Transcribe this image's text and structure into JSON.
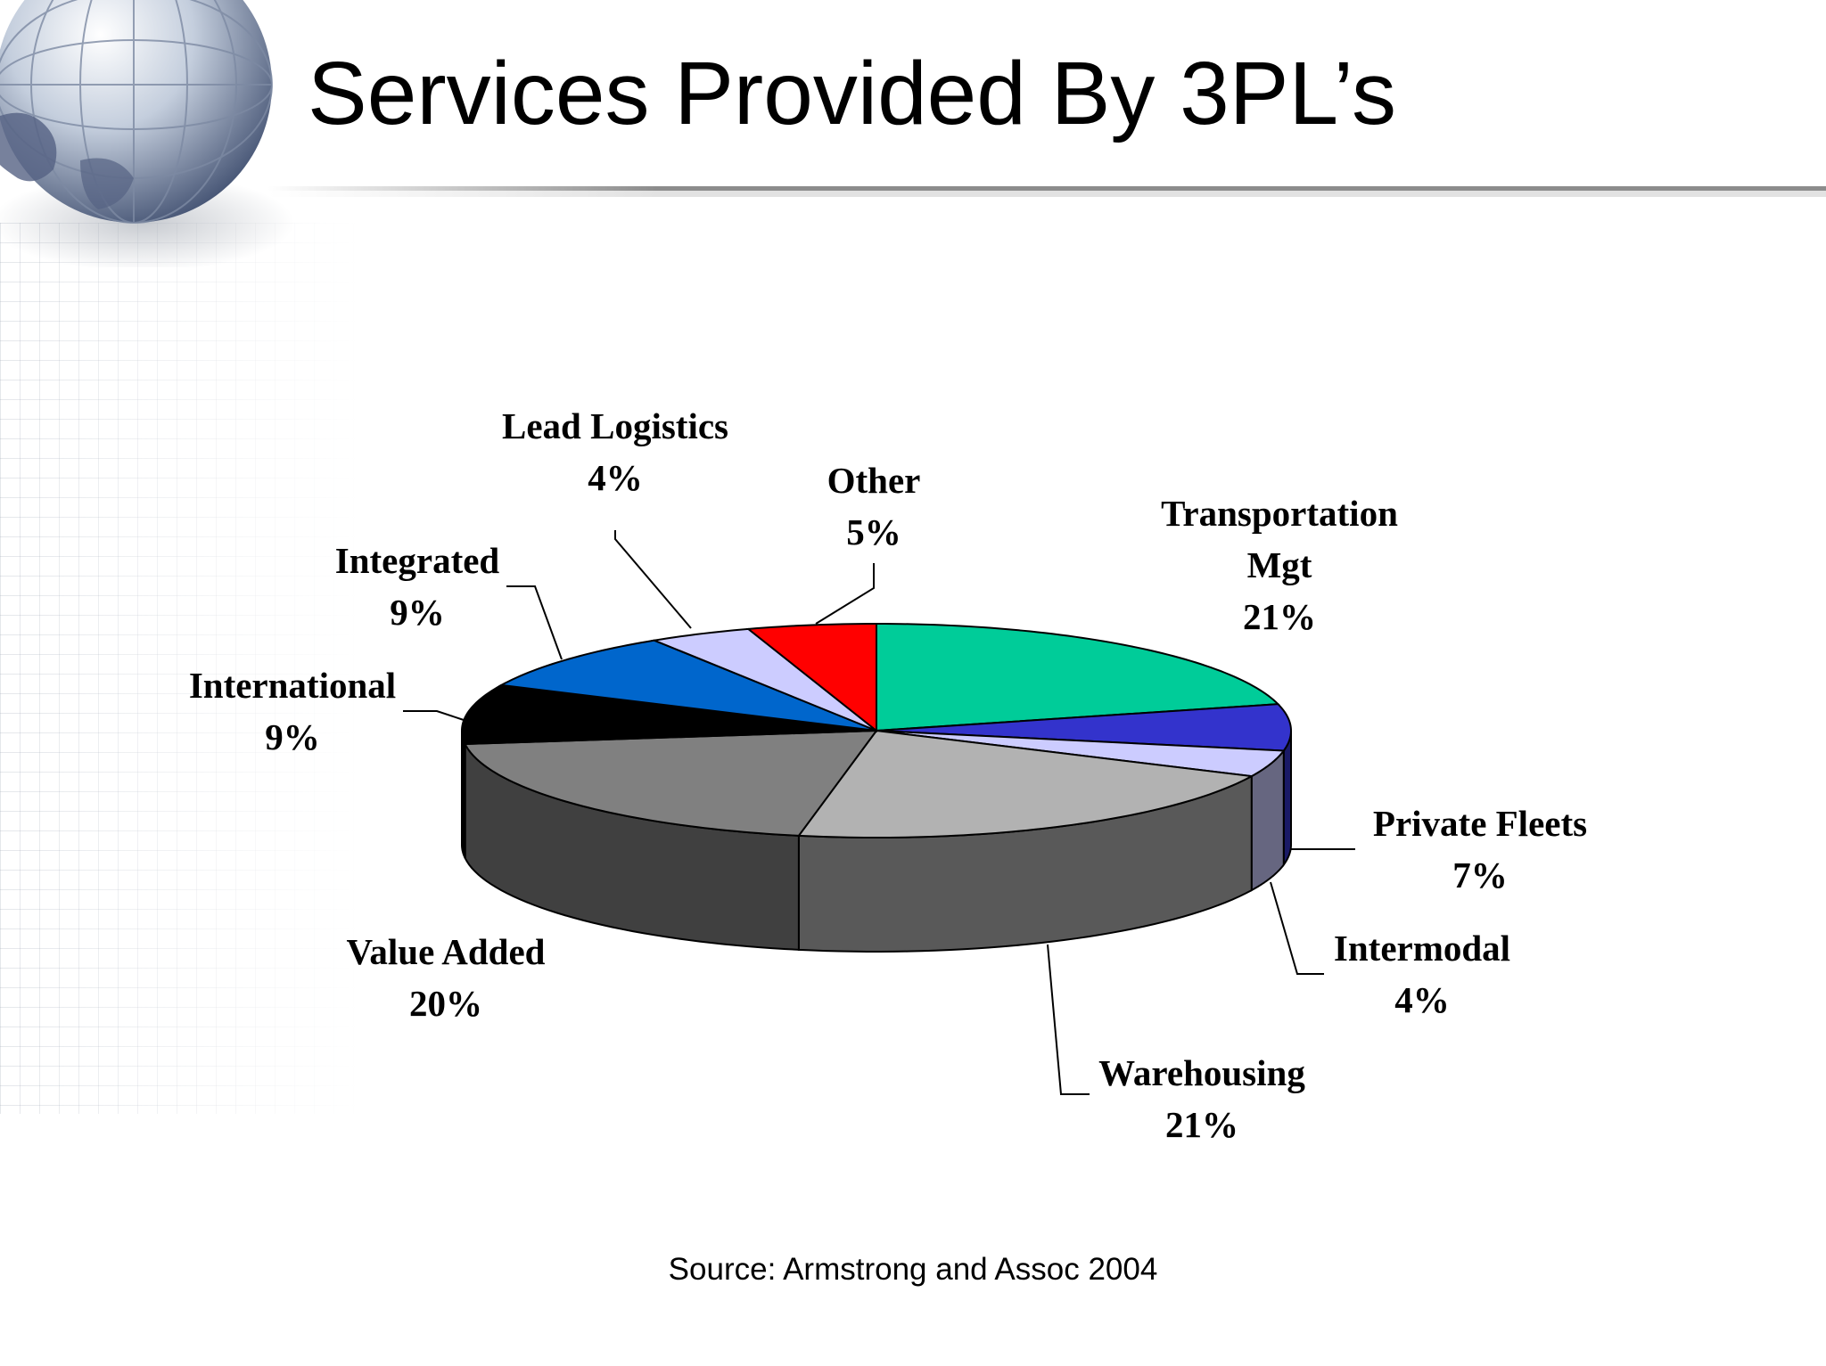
{
  "slide": {
    "title": "Services Provided By 3PL’s",
    "source": "Source: Armstrong and Assoc 2004"
  },
  "chart_data": {
    "type": "pie",
    "three_d": true,
    "slices": [
      {
        "name": "Transportation Mgt",
        "label_lines": [
          "Transportation",
          "Mgt"
        ],
        "value": 21,
        "pct_label": "21%",
        "color": "#00cc99"
      },
      {
        "name": "Private Fleets",
        "label_lines": [
          "Private Fleets"
        ],
        "value": 7,
        "pct_label": "7%",
        "color": "#3333cc"
      },
      {
        "name": "Intermodal",
        "label_lines": [
          "Intermodal"
        ],
        "value": 4,
        "pct_label": "4%",
        "color": "#ccccff"
      },
      {
        "name": "Warehousing",
        "label_lines": [
          "Warehousing"
        ],
        "value": 21,
        "pct_label": "21%",
        "color": "#b2b2b2"
      },
      {
        "name": "Value Added",
        "label_lines": [
          "Value Added"
        ],
        "value": 20,
        "pct_label": "20%",
        "color": "#808080"
      },
      {
        "name": "International",
        "label_lines": [
          "International"
        ],
        "value": 9,
        "pct_label": "9%",
        "color": "#000000"
      },
      {
        "name": "Integrated",
        "label_lines": [
          "Integrated"
        ],
        "value": 9,
        "pct_label": "9%",
        "color": "#0066cc"
      },
      {
        "name": "Lead Logistics",
        "label_lines": [
          "Lead Logistics"
        ],
        "value": 4,
        "pct_label": "4%",
        "color": "#ccccff"
      },
      {
        "name": "Other",
        "label_lines": [
          "Other"
        ],
        "value": 5,
        "pct_label": "5%",
        "color": "#ff0000"
      }
    ]
  }
}
